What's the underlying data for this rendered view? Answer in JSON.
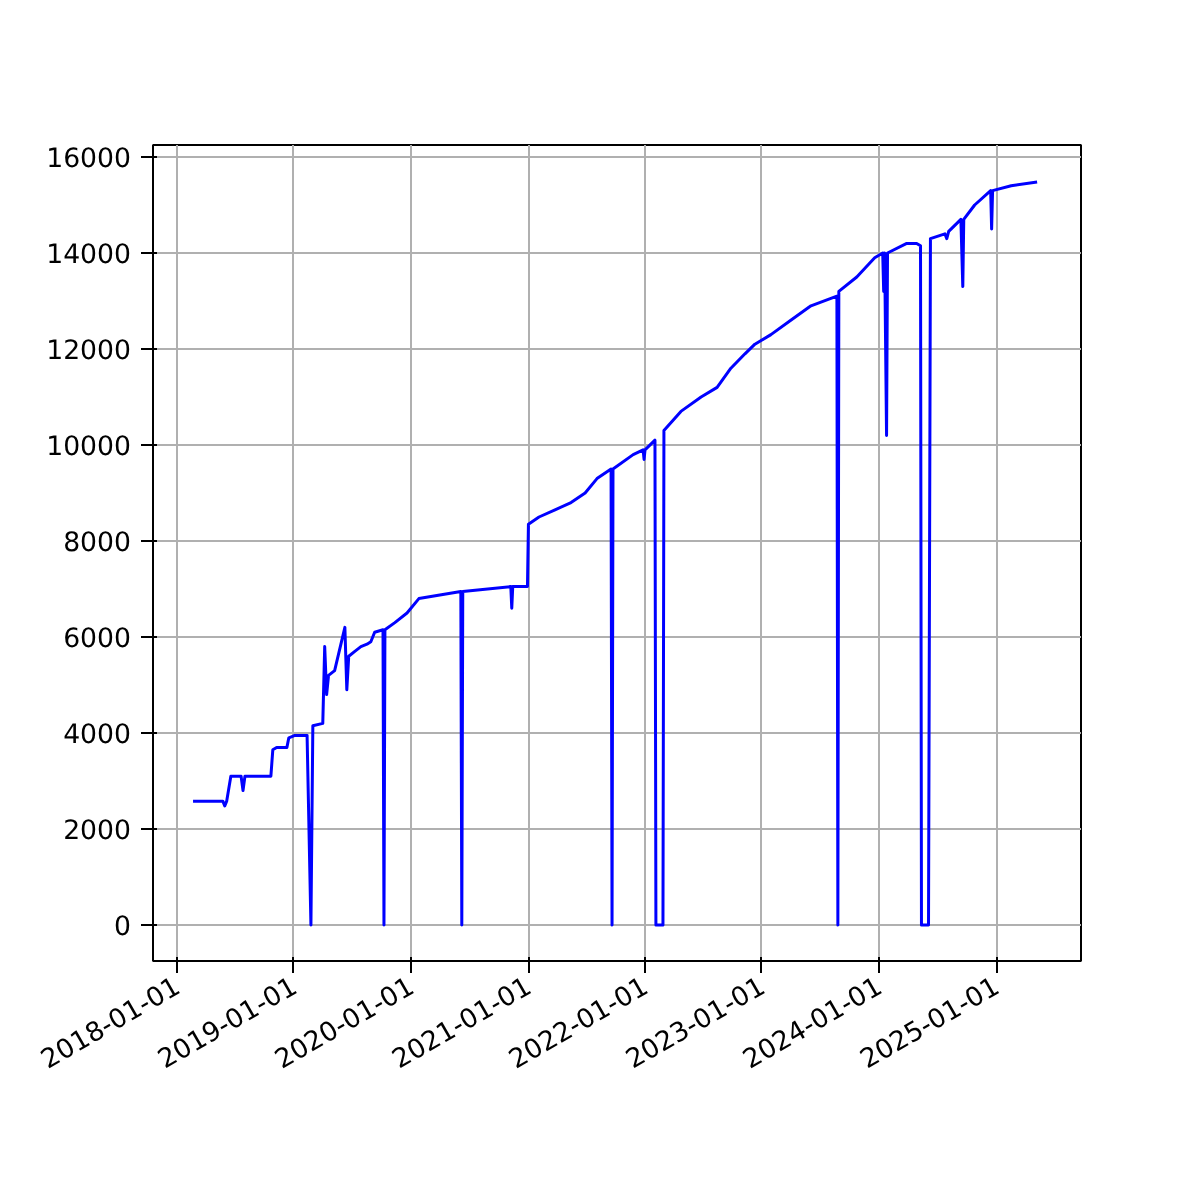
{
  "chart_data": {
    "type": "line",
    "xlim": [
      "2017-10-18",
      "2025-09-23"
    ],
    "ylim": [
      -750,
      16250
    ],
    "xticks": [
      "2018-01-01",
      "2019-01-01",
      "2020-01-01",
      "2021-01-01",
      "2022-01-01",
      "2023-01-01",
      "2024-01-01",
      "2025-01-01"
    ],
    "yticks": [
      0,
      2000,
      4000,
      6000,
      8000,
      10000,
      12000,
      14000,
      16000
    ],
    "grid": true,
    "series": [
      {
        "color": "#0000ff",
        "x": [
          "2018-02-20",
          "2018-05-24",
          "2018-05-30",
          "2018-06-05",
          "2018-06-18",
          "2018-07-20",
          "2018-07-26",
          "2018-08-01",
          "2018-10-21",
          "2018-10-27",
          "2018-11-08",
          "2018-12-10",
          "2018-12-16",
          "2019-01-04",
          "2019-02-11",
          "2019-02-23",
          "2019-03-01",
          "2019-04-01",
          "2019-04-07",
          "2019-04-13",
          "2019-04-19",
          "2019-05-08",
          "2019-06-09",
          "2019-06-15",
          "2019-06-21",
          "2019-07-10",
          "2019-07-29",
          "2019-08-17",
          "2019-08-29",
          "2019-09-10",
          "2019-10-06",
          "2019-10-09",
          "2019-10-12",
          "2019-11-12",
          "2019-12-20",
          "2020-01-26",
          "2020-06-05",
          "2020-06-08",
          "2020-06-11",
          "2020-11-08",
          "2020-11-11",
          "2020-11-14",
          "2020-12-30",
          "2021-01-02",
          "2021-02-04",
          "2021-03-26",
          "2021-05-15",
          "2021-06-28",
          "2021-08-04",
          "2021-09-17",
          "2021-09-20",
          "2021-09-23",
          "2021-11-25",
          "2021-12-26",
          "2021-12-29",
          "2022-01-01",
          "2022-02-01",
          "2022-02-04",
          "2022-02-26",
          "2022-03-01",
          "2022-04-23",
          "2022-06-25",
          "2022-08-14",
          "2022-09-26",
          "2022-11-09",
          "2022-12-10",
          "2023-01-29",
          "2023-04-01",
          "2023-06-03",
          "2023-08-23",
          "2023-08-26",
          "2023-08-29",
          "2023-10-24",
          "2023-12-19",
          "2024-01-13",
          "2024-01-16",
          "2024-01-19",
          "2024-01-25",
          "2024-01-28",
          "2024-03-28",
          "2024-04-28",
          "2024-05-10",
          "2024-05-13",
          "2024-06-04",
          "2024-06-10",
          "2024-07-25",
          "2024-07-31",
          "2024-08-06",
          "2024-09-13",
          "2024-09-19",
          "2024-09-22",
          "2024-10-26",
          "2024-12-15",
          "2024-12-18",
          "2024-12-21",
          "2025-02-17",
          "2025-05-09"
        ],
        "values": [
          2580,
          2580,
          2480,
          2580,
          3100,
          3100,
          2800,
          3100,
          3100,
          3650,
          3700,
          3700,
          3900,
          3950,
          3950,
          0,
          4150,
          4200,
          5800,
          4800,
          5200,
          5300,
          6200,
          4900,
          5600,
          5700,
          5800,
          5850,
          5900,
          6100,
          6150,
          0,
          6150,
          6300,
          6500,
          6800,
          6950,
          0,
          6950,
          7050,
          6600,
          7050,
          7050,
          8350,
          8500,
          8650,
          8800,
          9000,
          9300,
          9500,
          0,
          9500,
          9800,
          9900,
          9700,
          9900,
          10100,
          0,
          0,
          10300,
          10700,
          11000,
          11200,
          11600,
          11900,
          12100,
          12300,
          12600,
          12900,
          13100,
          0,
          13200,
          13500,
          13900,
          14000,
          13200,
          14000,
          10200,
          14000,
          14200,
          14200,
          14150,
          0,
          0,
          14300,
          14400,
          14300,
          14450,
          14700,
          13300,
          14700,
          15000,
          15300,
          14500,
          15300,
          15400,
          15480
        ]
      }
    ]
  }
}
